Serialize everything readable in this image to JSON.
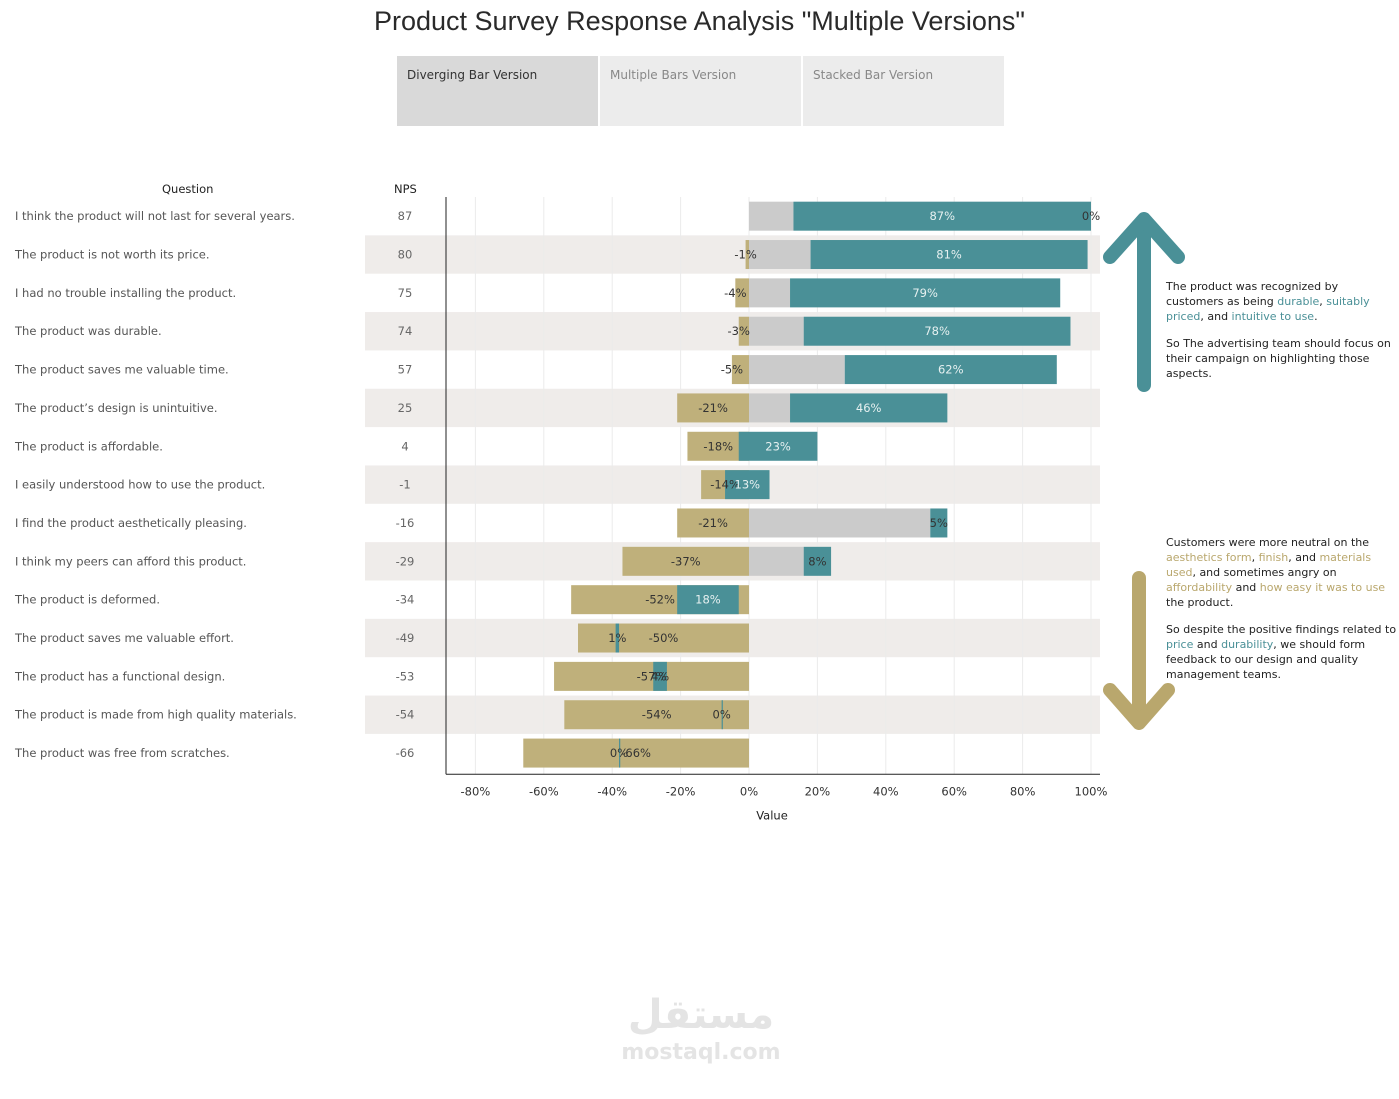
{
  "title": "Product Survey Response Analysis \"Multiple Versions\"",
  "tabs": [
    {
      "label": "Diverging Bar Version",
      "active": true
    },
    {
      "label": "Multiple Bars Version",
      "active": false
    },
    {
      "label": "Stacked Bar Version",
      "active": false
    }
  ],
  "colors": {
    "negative": "#bfb07b",
    "neutral": "#cbcbcb",
    "positive": "#4a9097",
    "band": "#efecea",
    "arrow_up": "#4a9097",
    "arrow_down": "#b9a76d"
  },
  "chart_data": {
    "type": "bar",
    "orientation": "horizontal-diverging",
    "column_headers": {
      "question": "Question",
      "nps": "NPS"
    },
    "xlabel": "Value",
    "xlim": [
      -0.88,
      1.05
    ],
    "xticks": [
      "-80%",
      "-60%",
      "-40%",
      "-20%",
      "0%",
      "20%",
      "40%",
      "60%",
      "80%",
      "100%"
    ],
    "xtick_values": [
      -0.8,
      -0.6,
      -0.4,
      -0.2,
      0,
      0.2,
      0.4,
      0.6,
      0.8,
      1.0
    ],
    "grid": true,
    "rows": [
      {
        "question": "I think the product will not last for several years.",
        "nps": "87",
        "neg": 0,
        "neutral": 0.13,
        "pos": 0.87,
        "neg_label": "",
        "pos_label": "87%",
        "extra_label": "0%"
      },
      {
        "question": "The product is not worth its price.",
        "nps": "80",
        "neg": -0.01,
        "neutral": 0.19,
        "pos": 0.81,
        "neg_label": "-1%",
        "pos_label": "81%",
        "extra_label": ""
      },
      {
        "question": "I had no trouble installing the product.",
        "nps": "75",
        "neg": -0.04,
        "neutral": 0.16,
        "pos": 0.79,
        "neg_label": "-4%",
        "pos_label": "79%",
        "extra_label": ""
      },
      {
        "question": "The product was durable.",
        "nps": "74",
        "neg": -0.03,
        "neutral": 0.19,
        "pos": 0.78,
        "neg_label": "-3%",
        "pos_label": "78%",
        "extra_label": ""
      },
      {
        "question": "The product saves me valuable time.",
        "nps": "57",
        "neg": -0.05,
        "neutral": 0.33,
        "pos": 0.62,
        "neg_label": "-5%",
        "pos_label": "62%",
        "extra_label": ""
      },
      {
        "question": "The product’s design is unintuitive.",
        "nps": "25",
        "neg": -0.21,
        "neutral": 0.33,
        "pos": 0.46,
        "neg_label": "-21%",
        "pos_label": "46%",
        "extra_label": ""
      },
      {
        "question": "The product is affordable.",
        "nps": "4",
        "neg": -0.18,
        "neutral": 0.15,
        "pos": 0.23,
        "neg_label": "-18%",
        "pos_label": "23%",
        "extra_label": ""
      },
      {
        "question": "I easily understood how to use the product.",
        "nps": "-1",
        "neg": -0.14,
        "neutral": 0.07,
        "pos": 0.13,
        "neg_label": "-14%",
        "pos_label": "13%",
        "extra_label": ""
      },
      {
        "question": "I find the product aesthetically pleasing.",
        "nps": "-16",
        "neg": -0.21,
        "neutral": 0.74,
        "pos": 0.05,
        "neg_label": "-21%",
        "pos_label": "5%",
        "extra_label": ""
      },
      {
        "question": "I think my peers can afford this product.",
        "nps": "-29",
        "neg": -0.37,
        "neutral": 0.53,
        "pos": 0.08,
        "neg_label": "-37%",
        "pos_label": "8%",
        "extra_label": ""
      },
      {
        "question": "The product is deformed.",
        "nps": "-34",
        "neg": -0.52,
        "neutral": 0.31,
        "pos": 0.18,
        "neg_label": "-52%",
        "pos_label": "18%",
        "extra_label": ""
      },
      {
        "question": "The product saves me valuable effort.",
        "nps": "-49",
        "neg": -0.5,
        "neutral": 0.11,
        "pos": 0.01,
        "neg_label": "-50%",
        "pos_label": "1%",
        "extra_label": ""
      },
      {
        "question": "The product has a functional design.",
        "nps": "-53",
        "neg": -0.57,
        "neutral": 0.29,
        "pos": 0.04,
        "neg_label": "-57%",
        "pos_label": "4%",
        "extra_label": ""
      },
      {
        "question": "The product is made from high quality materials.",
        "nps": "-54",
        "neg": -0.54,
        "neutral": 0.46,
        "pos": 0.0,
        "neg_label": "-54%",
        "pos_label": "0%",
        "extra_label": ""
      },
      {
        "question": "The product was free from scratches.",
        "nps": "-66",
        "neg": -0.66,
        "neutral": 0.28,
        "pos": 0.0,
        "neg_label": "-66%",
        "pos_label": "0%",
        "extra_label": ""
      }
    ]
  },
  "notes": {
    "top": {
      "p1_a": "The product was recognized by customers as being ",
      "p1_h1": "durable",
      "p1_b": ", ",
      "p1_h2": "suitably priced",
      "p1_c": ", and ",
      "p1_h3": "intuitive to use",
      "p1_d": ".",
      "p2": "So The advertising team should focus on their campaign on highlighting those aspects."
    },
    "bottom": {
      "p1_a": "Customers were more neutral on the ",
      "p1_h1": "aesthetics form",
      "p1_b": ", ",
      "p1_h2": "finish",
      "p1_c": ", and ",
      "p1_h3": "materials used",
      "p1_d": ", and sometimes angry on ",
      "p1_h4": "affordability",
      "p1_e": " and ",
      "p1_h5": "how easy it was to use",
      "p1_f": " the product.",
      "p2_a": "So despite the positive findings related to ",
      "p2_h1": "price",
      "p2_b": " and ",
      "p2_h2": "durability",
      "p2_c": ", we should form feedback to our design and quality management teams."
    }
  },
  "watermark": {
    "arabic": "مستقل",
    "latin": "mostaql.com"
  }
}
